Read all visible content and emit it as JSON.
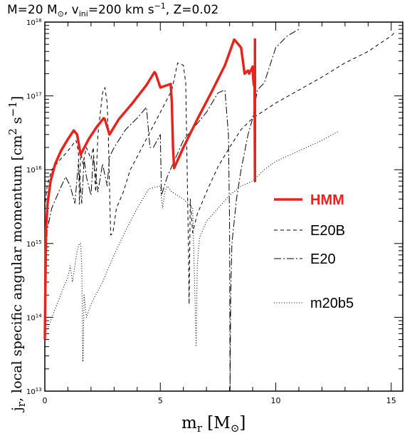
{
  "header": {
    "title_mass": "M=20 M",
    "title_mass_sub": "⊙",
    "title_v": ", v",
    "title_v_sub": "ini",
    "title_v_val": "=200 km s",
    "title_v_exp": "−1",
    "title_z": ", Z=0.02"
  },
  "axes": {
    "ylabel_main": "j",
    "ylabel_sub": "r",
    "ylabel_rest": ", local specific angular momentum [cm",
    "ylabel_exp2": "2",
    "ylabel_rest2": " s",
    "ylabel_expm1": "−1",
    "ylabel_end": "]",
    "xlabel_main": "m",
    "xlabel_sub": "r",
    "xlabel_rest": " [M",
    "xlabel_sun": "⊙",
    "xlabel_end": "]"
  },
  "colors": {
    "hmm": "#e8231c",
    "axis": "#000000"
  },
  "chart_data": {
    "type": "line",
    "xlim": [
      0,
      15.5
    ],
    "ylim": [
      10000000000000.0,
      1e+18
    ],
    "yscale": "log",
    "legend_position": "right-middle",
    "x_ticks": [
      0,
      5,
      10,
      15
    ],
    "y_ticks": [
      {
        "value": 10000000000000.0,
        "base": "10",
        "exp": "13"
      },
      {
        "value": 100000000000000.0,
        "base": "10",
        "exp": "14"
      },
      {
        "value": 1000000000000000.0,
        "base": "10",
        "exp": "15"
      },
      {
        "value": 1e+16,
        "base": "10",
        "exp": "16"
      },
      {
        "value": 1e+17,
        "base": "10",
        "exp": "17"
      },
      {
        "value": 1e+18,
        "base": "10",
        "exp": "18"
      }
    ],
    "series": [
      {
        "name": "HMM",
        "color": "#e8231c",
        "style": "solid-thick",
        "x": [
          0,
          0.05,
          0.12,
          0.25,
          0.45,
          0.7,
          1.0,
          1.25,
          1.4,
          1.55,
          1.9,
          2.25,
          2.55,
          2.6,
          2.75,
          2.8,
          3.2,
          3.8,
          4.4,
          4.75,
          4.8,
          5.0,
          5.3,
          5.45,
          5.5,
          5.55,
          5.6,
          6.0,
          6.6,
          7.2,
          7.8,
          8.2,
          8.25,
          8.5,
          8.65,
          8.8,
          8.85,
          9.0,
          9.02,
          9.05,
          9.08,
          9.1,
          9.1,
          9.1
        ],
        "y": [
          50000000000000.0,
          1500000000000000.0,
          3500000000000000.0,
          7000000000000000.0,
          1.2e+16,
          1.8e+16,
          2.6e+16,
          3.4e+16,
          3e+16,
          1.6e+16,
          2.6e+16,
          3.8e+16,
          5e+16,
          4.8e+16,
          3.4e+16,
          3e+16,
          4.8e+16,
          8e+16,
          1.4e+17,
          2.1e+17,
          2e+17,
          1.3e+17,
          1.4e+17,
          1.45e+17,
          8e+16,
          2e+16,
          1.05e+16,
          2e+16,
          4.8e+16,
          1.1e+17,
          2.6e+17,
          5.8e+17,
          5.6e+17,
          4.5e+17,
          2e+17,
          2.2e+17,
          2e+17,
          2.5e+17,
          1.8e+17,
          1.4e+17,
          1.5e+17,
          7000000000000000.0,
          3e+16,
          6e+17
        ]
      },
      {
        "name": "E20B",
        "color": "#000000",
        "style": "dashed",
        "x": [
          0,
          0.1,
          0.3,
          0.6,
          1.0,
          1.35,
          1.45,
          1.5,
          1.55,
          1.65,
          1.8,
          2.0,
          2.1,
          2.2,
          2.3,
          2.5,
          2.6,
          2.7,
          2.75,
          2.85,
          2.95,
          3.1,
          3.4,
          3.7,
          4.0,
          4.5,
          5.0,
          5.5,
          5.75,
          6.0,
          6.1,
          6.2,
          6.25,
          6.3,
          6.4,
          6.6,
          7.0,
          7.5,
          8.0,
          8.5,
          9.0,
          10.0,
          11.0,
          12.0,
          13.0,
          14.0,
          15.0,
          15.2
        ],
        "y": [
          3000000000000000.0,
          6000000000000000.0,
          1e+16,
          1.3e+16,
          1.8e+16,
          2.5e+16,
          1.8e+16,
          3400000000000000.0,
          1.8e+16,
          1.2e+16,
          2e+16,
          1.4e+16,
          2e+16,
          5000000000000000.0,
          3e+16,
          1.1e+17,
          1.3e+17,
          8e+16,
          3e+16,
          1300000000000000.0,
          1400000000000000.0,
          3000000000000000.0,
          5000000000000000.0,
          1e+16,
          1.5e+16,
          3e+16,
          6e+16,
          1.2e+17,
          2.8e+17,
          2.6e+17,
          1.5e+17,
          2000000000000000.0,
          150000000000000.0,
          4000000000000000.0,
          1400000000000000.0,
          2500000000000000.0,
          5000000000000000.0,
          1.1e+16,
          2e+16,
          3.5e+16,
          5e+16,
          8e+16,
          1.2e+17,
          1.8e+17,
          2.8e+17,
          4e+17,
          6.5e+17,
          7.5e+17
        ]
      },
      {
        "name": "E20",
        "color": "#000000",
        "style": "dash-dot",
        "x": [
          0,
          0.1,
          0.3,
          0.6,
          0.9,
          1.1,
          1.3,
          1.45,
          1.5,
          1.6,
          1.7,
          1.8,
          2.0,
          2.1,
          2.3,
          2.5,
          2.7,
          2.8,
          3.0,
          3.5,
          4.0,
          4.4,
          4.55,
          4.7,
          5.0,
          5.05,
          5.3,
          6.0,
          7.0,
          7.5,
          7.8,
          7.95,
          8.0,
          8.02,
          8.05,
          8.1,
          8.3,
          8.5,
          8.8,
          9.0,
          9.2,
          9.5,
          10.0,
          10.5,
          11.0
        ],
        "y": [
          50000000000000.0,
          1500000000000000.0,
          3000000000000000.0,
          5000000000000000.0,
          8000000000000000.0,
          6000000000000000.0,
          3500000000000000.0,
          1.2e+16,
          8000000000000000.0,
          3500000000000000.0,
          1.4e+16,
          8000000000000000.0,
          4500000000000000.0,
          1.5e+16,
          5000000000000000.0,
          1.2e+16,
          6000000000000000.0,
          1.5e+16,
          2e+16,
          3.5e+16,
          5e+16,
          7e+16,
          2e+16,
          2e+16,
          3e+16,
          4500000000000000.0,
          8000000000000000.0,
          2.5e+16,
          6e+16,
          1.1e+17,
          1.2e+17,
          3e+16,
          2000000000000000.0,
          10000000000000.0,
          200000000000000.0,
          1000000000000000.0,
          4000000000000000.0,
          1e+16,
          3e+16,
          5e+16,
          1.2e+17,
          1.5e+17,
          4.5e+17,
          6.5e+17,
          8e+17
        ]
      },
      {
        "name": "m20b5",
        "color": "#000000",
        "style": "dotted",
        "x": [
          0,
          0.2,
          0.4,
          0.6,
          0.8,
          1.0,
          1.1,
          1.2,
          1.3,
          1.4,
          1.5,
          1.55,
          1.6,
          1.65,
          1.7,
          1.8,
          2.0,
          2.2,
          2.5,
          3.0,
          3.5,
          4.0,
          4.5,
          5.0,
          5.1,
          5.2,
          5.3,
          5.5,
          6.0,
          6.4,
          6.5,
          6.55,
          6.6,
          6.7,
          7.0,
          7.5,
          8.0,
          8.5,
          9.0,
          9.5,
          10.0,
          11.0,
          12.0,
          12.7
        ],
        "y": [
          60000000000000.0,
          80000000000000.0,
          120000000000000.0,
          170000000000000.0,
          250000000000000.0,
          350000000000000.0,
          500000000000000.0,
          300000000000000.0,
          500000000000000.0,
          800000000000000.0,
          1000000000000000.0,
          1000000000000000.0,
          500000000000000.0,
          25000000000000.0,
          200000000000000.0,
          100000000000000.0,
          150000000000000.0,
          200000000000000.0,
          300000000000000.0,
          700000000000000.0,
          1500000000000000.0,
          3000000000000000.0,
          5500000000000000.0,
          6000000000000000.0,
          3000000000000000.0,
          5000000000000000.0,
          6000000000000000.0,
          5000000000000000.0,
          4000000000000000.0,
          3000000000000000.0,
          200000000000000.0,
          40000000000000.0,
          500000000000000.0,
          1200000000000000.0,
          2000000000000000.0,
          3000000000000000.0,
          4500000000000000.0,
          6000000000000000.0,
          7000000000000000.0,
          1e+16,
          1.3e+16,
          1.8e+16,
          2.5e+16,
          3.3e+16
        ]
      }
    ]
  }
}
